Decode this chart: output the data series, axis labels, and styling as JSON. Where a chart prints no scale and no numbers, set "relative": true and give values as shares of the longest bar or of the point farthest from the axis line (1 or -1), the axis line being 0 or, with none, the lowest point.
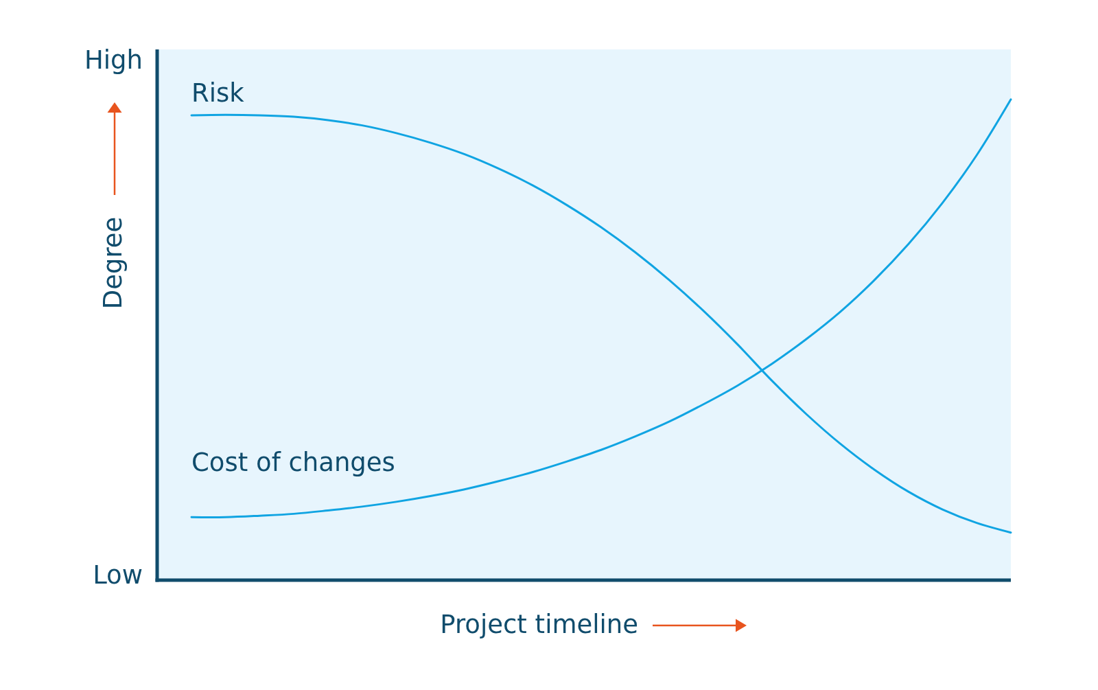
{
  "chart_data": {
    "type": "line",
    "relative": true,
    "xlabel": "Project timeline",
    "ylabel": "Degree",
    "annotations": [
      "High",
      "Low"
    ],
    "categories": [
      null,
      null,
      null,
      null,
      null,
      null,
      null,
      null,
      null,
      null,
      null,
      null,
      null,
      null,
      null,
      null,
      null,
      null,
      null,
      null,
      null,
      null,
      null,
      null,
      null
    ],
    "series": [
      {
        "name": "Risk",
        "color": "#10a4e2",
        "values": [
          0.967,
          0.968,
          0.967,
          0.964,
          0.957,
          0.946,
          0.93,
          0.91,
          0.886,
          0.856,
          0.821,
          0.78,
          0.734,
          0.682,
          0.624,
          0.56,
          0.49,
          0.415,
          0.346,
          0.284,
          0.23,
          0.184,
          0.147,
          0.119,
          0.099
        ]
      },
      {
        "name": "Cost of changes",
        "color": "#10a4e2",
        "values": [
          0.131,
          0.131,
          0.134,
          0.138,
          0.145,
          0.153,
          0.163,
          0.175,
          0.189,
          0.206,
          0.225,
          0.247,
          0.271,
          0.299,
          0.33,
          0.366,
          0.405,
          0.45,
          0.501,
          0.558,
          0.624,
          0.699,
          0.785,
          0.884,
          1.0
        ]
      }
    ]
  }
}
